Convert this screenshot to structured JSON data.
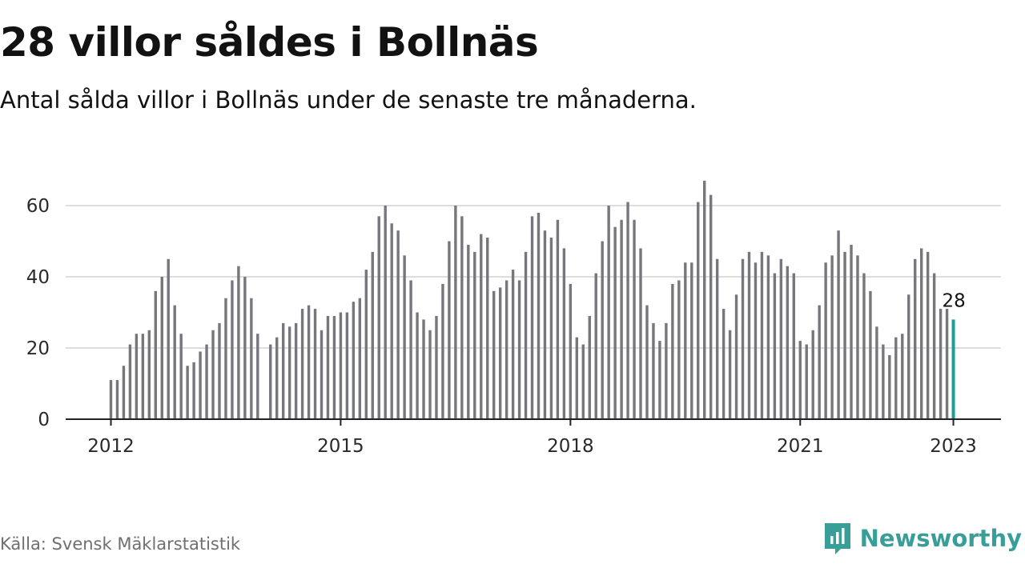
{
  "header": {
    "title": "28 villor såldes i Bollnäs",
    "subtitle": "Antal sålda villor i Bollnäs under de senaste tre månaderna."
  },
  "footer": {
    "source": "Källa: Svensk Mäklarstatistik",
    "brand": "Newsworthy"
  },
  "colors": {
    "bar": "#77767c",
    "highlight": "#1a9e98",
    "grid": "#dddddd",
    "axis": "#222222",
    "brand": "#3a9e98"
  },
  "chart_data": {
    "type": "bar",
    "title": "28 villor såldes i Bollnäs",
    "subtitle": "Antal sålda villor i Bollnäs under de senaste tre månaderna.",
    "xlabel": "",
    "ylabel": "",
    "ylim": [
      0,
      70
    ],
    "yticks": [
      0,
      20,
      40,
      60
    ],
    "xticks": [
      "2012",
      "2015",
      "2018",
      "2021",
      "2023"
    ],
    "grid": true,
    "legend": "none",
    "series": [
      {
        "values": [
          11,
          11,
          15,
          21,
          24,
          24,
          25,
          36,
          40,
          45,
          32,
          24,
          15,
          16,
          19,
          21,
          25,
          27,
          34,
          39,
          43,
          40,
          34,
          24,
          null,
          21,
          23,
          27,
          26,
          27,
          31,
          32,
          31,
          25,
          29,
          29,
          30,
          30,
          33,
          34,
          42,
          47,
          57,
          60,
          55,
          53,
          46,
          39,
          30,
          28,
          25,
          29,
          38,
          50,
          60,
          57,
          49,
          47,
          52,
          51,
          36,
          37,
          39,
          42,
          39,
          47,
          57,
          58,
          53,
          51,
          56,
          48,
          38,
          23,
          21,
          29,
          41,
          50,
          60,
          54,
          56,
          61,
          56,
          48,
          32,
          27,
          22,
          27,
          38,
          39,
          44,
          44,
          61,
          67,
          63,
          45,
          31,
          25,
          35,
          45,
          47,
          44,
          47,
          46,
          41,
          45,
          43,
          41,
          22,
          21,
          25,
          32,
          44,
          46,
          53,
          47,
          49,
          46,
          41,
          36,
          26,
          21,
          18,
          23,
          24,
          35,
          45,
          48,
          47,
          41,
          31,
          31,
          28
        ]
      }
    ],
    "highlight": {
      "label": "28",
      "value": 28
    }
  }
}
